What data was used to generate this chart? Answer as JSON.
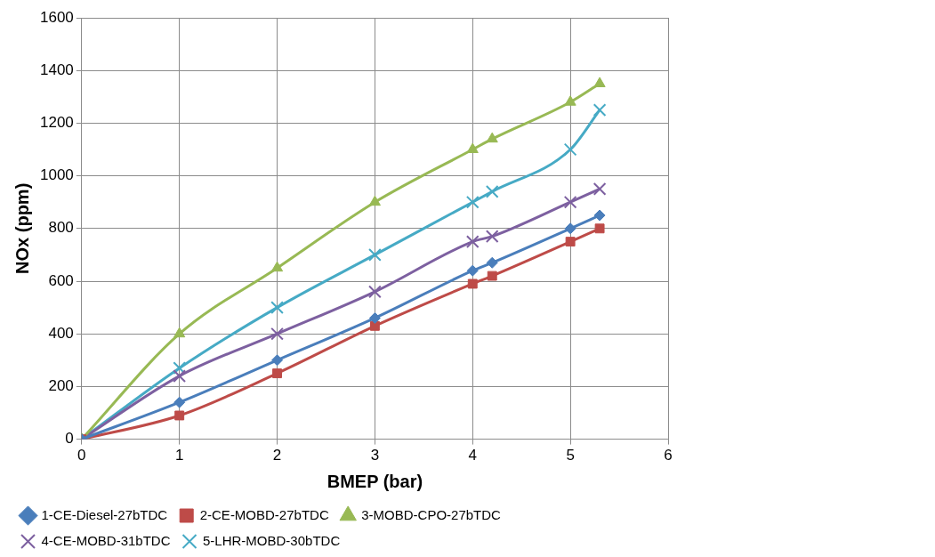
{
  "chart_data": {
    "type": "line",
    "xlabel": "BMEP (bar)",
    "ylabel": "NOx (ppm)",
    "x": [
      0,
      1,
      2,
      3,
      4,
      4.2,
      5,
      5.3
    ],
    "xlim": [
      0,
      6
    ],
    "xticks": [
      0,
      1,
      2,
      3,
      4,
      5,
      6
    ],
    "ylim": [
      0,
      1600
    ],
    "yticks": [
      0,
      200,
      400,
      600,
      800,
      1000,
      1200,
      1400,
      1600
    ],
    "grid": true,
    "legend": "bottom",
    "line_style": "solid",
    "series": [
      {
        "name": "1-CE-Diesel-27bTDC",
        "color": "#4a7ebb",
        "marker": "diamond",
        "values": [
          0,
          140,
          300,
          460,
          640,
          670,
          800,
          850
        ]
      },
      {
        "name": "2-CE-MOBD-27bTDC",
        "color": "#be4b48",
        "marker": "square",
        "values": [
          0,
          90,
          250,
          430,
          590,
          620,
          750,
          800
        ]
      },
      {
        "name": "3-MOBD-CPO-27bTDC",
        "color": "#98b954",
        "marker": "triangle",
        "values": [
          0,
          400,
          650,
          900,
          1100,
          1140,
          1280,
          1350
        ]
      },
      {
        "name": "4-CE-MOBD-31bTDC",
        "color": "#7d60a0",
        "marker": "cross",
        "values": [
          0,
          240,
          400,
          560,
          750,
          770,
          900,
          950
        ]
      },
      {
        "name": "5-LHR-MOBD-30bTDC",
        "color": "#46aac5",
        "marker": "cross",
        "values": [
          0,
          270,
          500,
          700,
          900,
          940,
          1100,
          1250
        ]
      }
    ]
  }
}
